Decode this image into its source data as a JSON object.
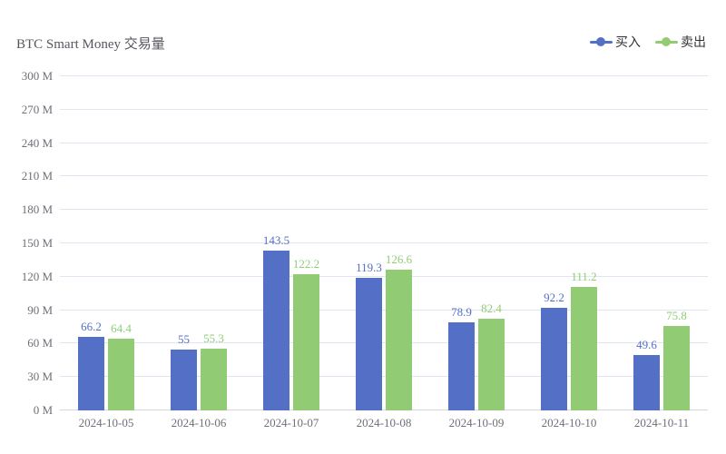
{
  "chart_data": {
    "type": "bar",
    "title": "BTC Smart Money 交易量",
    "categories": [
      "2024-10-05",
      "2024-10-06",
      "2024-10-07",
      "2024-10-08",
      "2024-10-09",
      "2024-10-10",
      "2024-10-11"
    ],
    "series": [
      {
        "name": "买入",
        "color": "#5470c6",
        "values": [
          66.2,
          55,
          143.5,
          119.3,
          78.9,
          92.2,
          49.6
        ]
      },
      {
        "name": "卖出",
        "color": "#91cc75",
        "values": [
          64.4,
          55.3,
          122.2,
          126.6,
          82.4,
          111.2,
          75.8
        ]
      }
    ],
    "xlabel": "",
    "ylabel": "",
    "ylim": [
      0,
      300
    ],
    "y_tick_step": 30,
    "y_ticks": [
      "0 M",
      "30 M",
      "60 M",
      "90 M",
      "120 M",
      "150 M",
      "180 M",
      "210 M",
      "240 M",
      "270 M",
      "300 M"
    ],
    "grid": true,
    "legend_position": "top-right",
    "colors": {
      "buy": "#5470c6",
      "sell": "#91cc75",
      "axis_text": "#6E7079",
      "grid_line": "#E0E6F1",
      "title_text": "#54575f",
      "background": "#ffffff"
    }
  }
}
